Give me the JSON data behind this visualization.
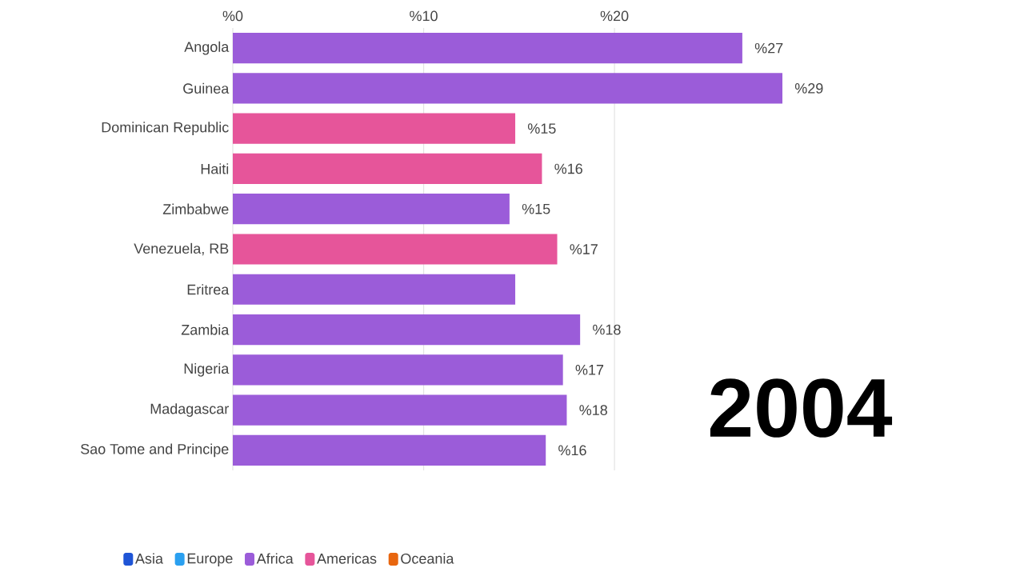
{
  "chart_data": {
    "type": "bar",
    "orientation": "horizontal",
    "categories": [
      "Angola",
      "Guinea",
      "Dominican Republic",
      "Haiti",
      "Zimbabwe",
      "Venezuela, RB",
      "Eritrea",
      "Zambia",
      "Nigeria",
      "Madagascar",
      "Sao Tome and Principe"
    ],
    "series": [
      {
        "name": "Asia",
        "color": "#1f55d6",
        "values": [
          null,
          null,
          null,
          null,
          null,
          null,
          null,
          null,
          null,
          null,
          null
        ]
      },
      {
        "name": "Europe",
        "color": "#2aa0f0",
        "values": [
          null,
          null,
          null,
          null,
          null,
          null,
          null,
          null,
          null,
          null,
          null
        ]
      },
      {
        "name": "Africa",
        "color": "#9b5cd9",
        "values": [
          26.7,
          28.8,
          null,
          null,
          14.5,
          null,
          14.8,
          18.2,
          17.3,
          17.5,
          16.4
        ],
        "value_labels": [
          "%27",
          "%29",
          null,
          null,
          "%15",
          null,
          null,
          "%18",
          "%17",
          "%18",
          "%16"
        ]
      },
      {
        "name": "Americas",
        "color": "#e6559a",
        "values": [
          null,
          null,
          14.8,
          16.2,
          null,
          17.0,
          null,
          null,
          null,
          null,
          null
        ],
        "value_labels": [
          null,
          null,
          "%15",
          "%16",
          null,
          "%17",
          null,
          null,
          null,
          null,
          null
        ]
      },
      {
        "name": "Oceania",
        "color": "#e8660f",
        "values": [
          null,
          null,
          null,
          null,
          null,
          null,
          null,
          null,
          null,
          null,
          null
        ]
      }
    ],
    "xlim": [
      0,
      28.8
    ],
    "xticks": [
      {
        "value": 0,
        "label": "%0"
      },
      {
        "value": 10,
        "label": "%10"
      },
      {
        "value": 20,
        "label": "%20"
      }
    ],
    "grid": "x",
    "legend": "bottom left",
    "annotations": [
      "2004"
    ]
  }
}
